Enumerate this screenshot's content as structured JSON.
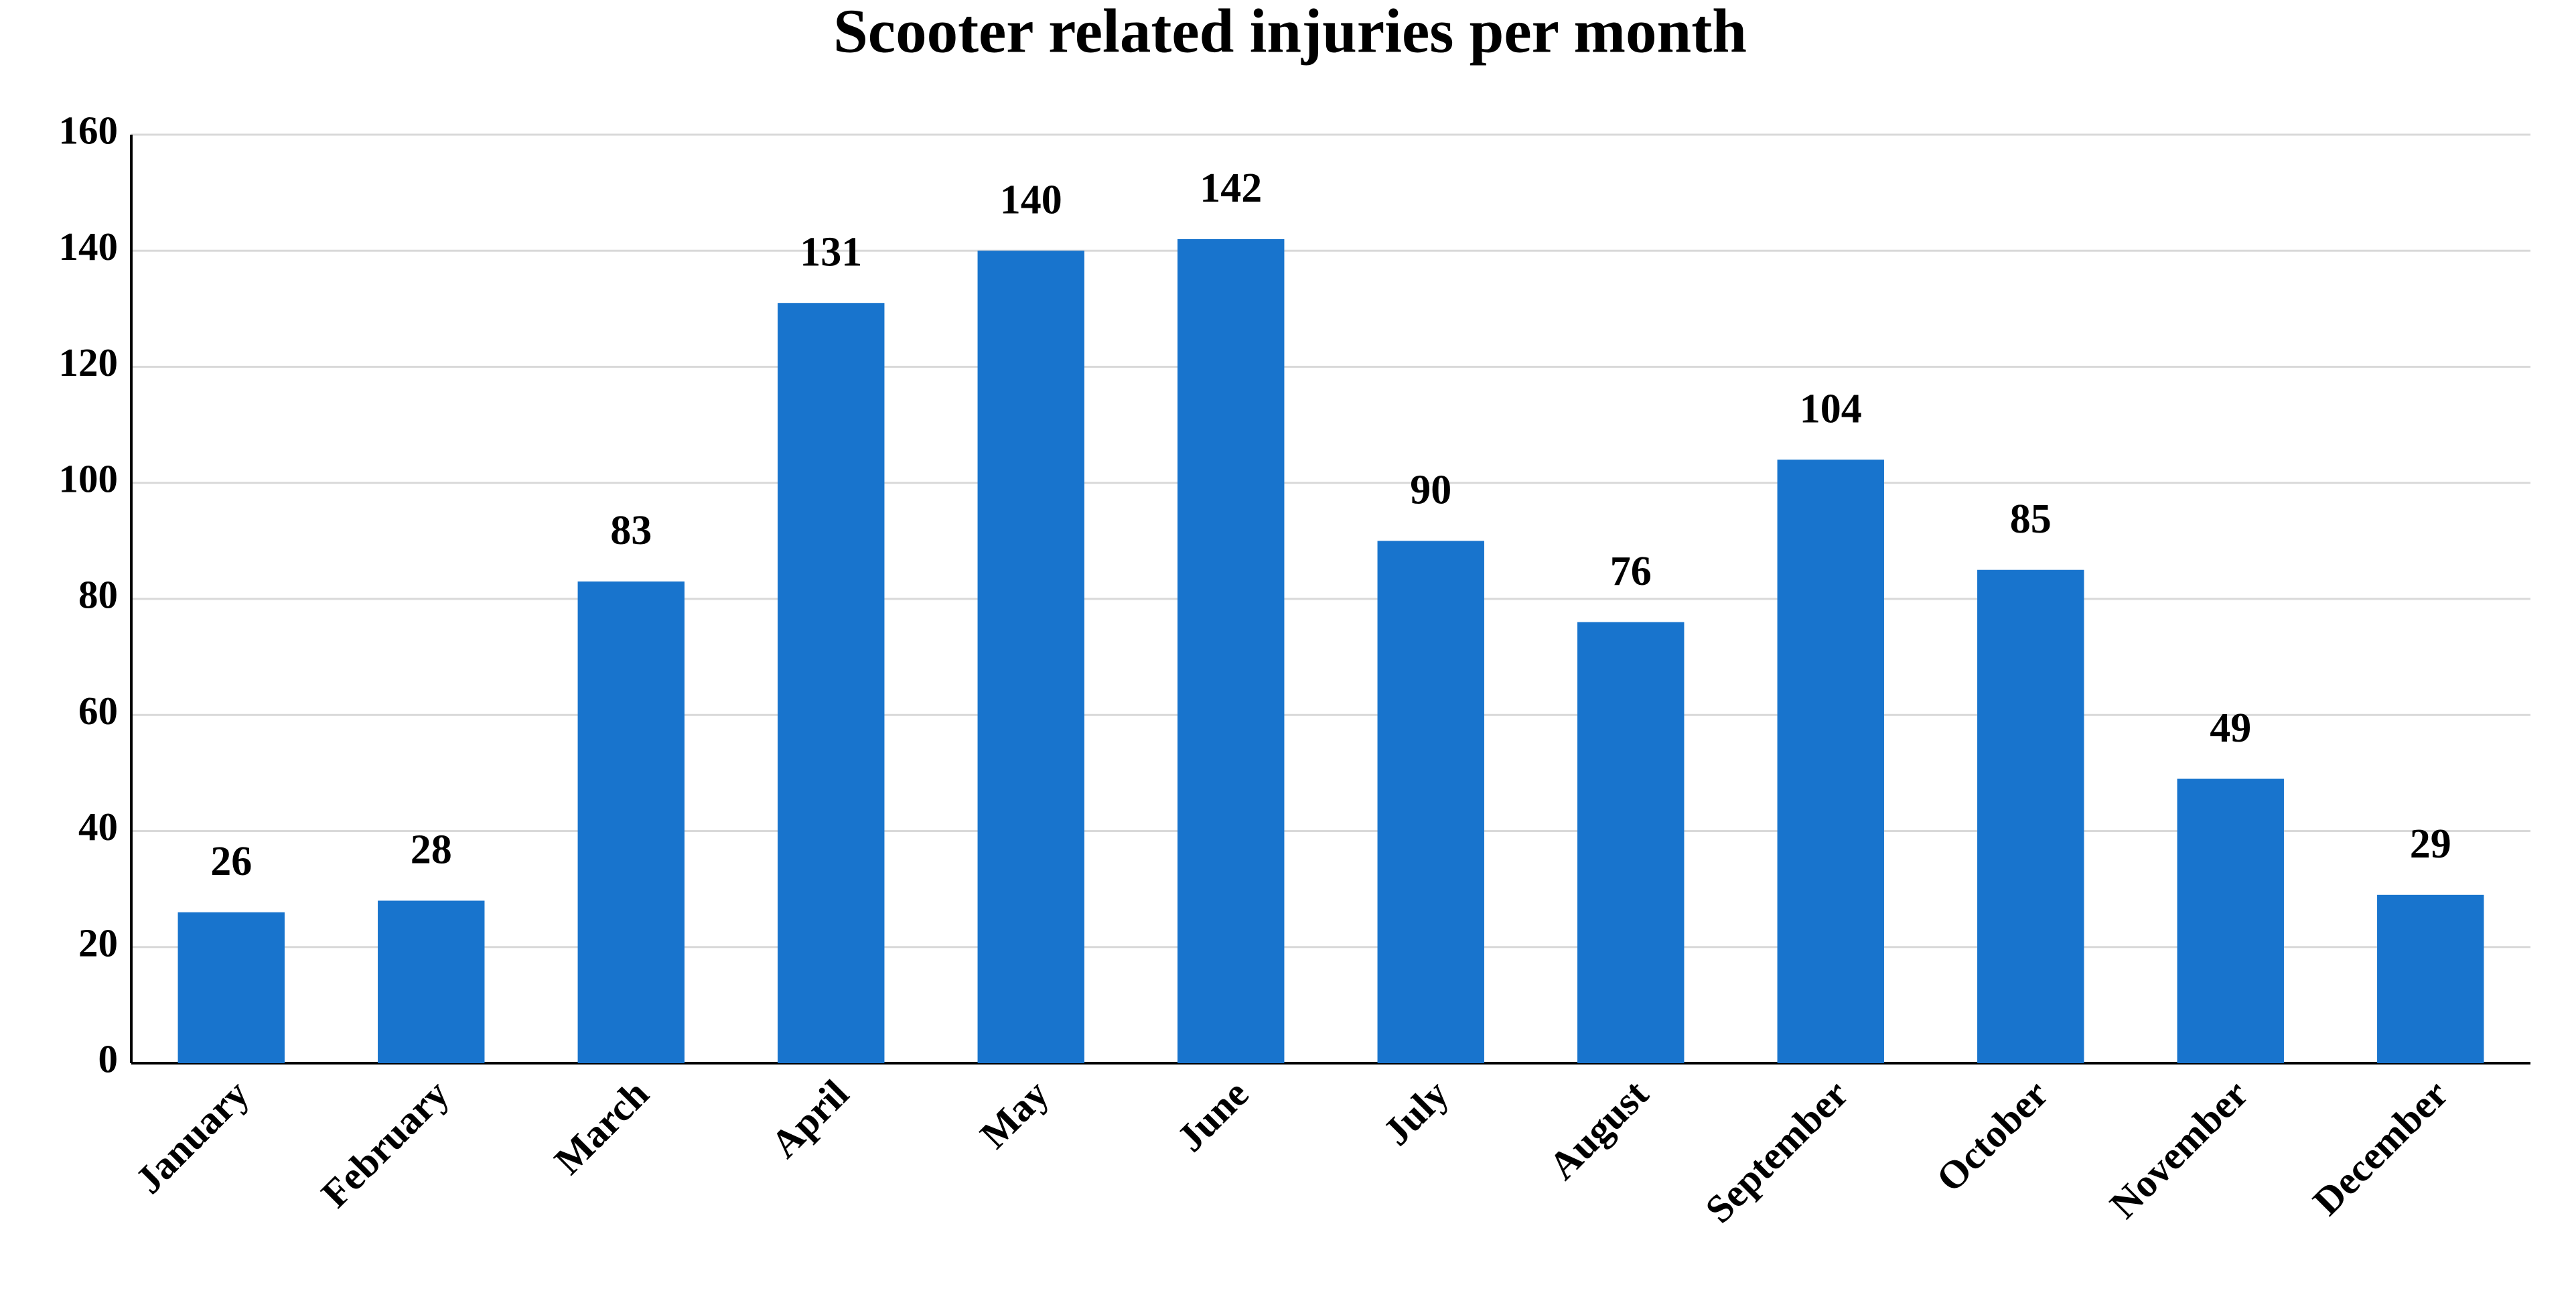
{
  "chart_data": {
    "type": "bar",
    "title": "Scooter related injuries per month",
    "categories": [
      "January",
      "February",
      "March",
      "April",
      "May",
      "June",
      "July",
      "August",
      "September",
      "October",
      "November",
      "December"
    ],
    "values": [
      26,
      28,
      83,
      131,
      140,
      142,
      90,
      76,
      104,
      85,
      49,
      29
    ],
    "color": "#1874cd",
    "ylim": [
      0,
      160
    ],
    "yticks": [
      0,
      20,
      40,
      60,
      80,
      100,
      120,
      140,
      160
    ],
    "grid": true
  }
}
